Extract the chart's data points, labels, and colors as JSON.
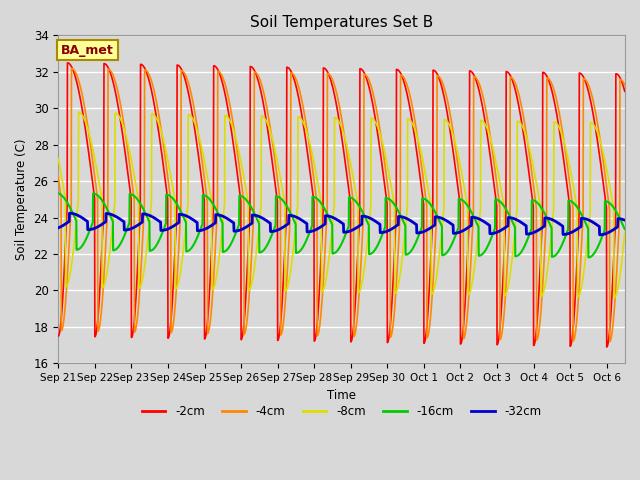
{
  "title": "Soil Temperatures Set B",
  "xlabel": "Time",
  "ylabel": "Soil Temperature (C)",
  "ylim": [
    16,
    34
  ],
  "yticks": [
    16,
    18,
    20,
    22,
    24,
    26,
    28,
    30,
    32,
    34
  ],
  "legend_labels": [
    "-2cm",
    "-4cm",
    "-8cm",
    "-16cm",
    "-32cm"
  ],
  "legend_colors": [
    "#ff0000",
    "#ff8800",
    "#dddd00",
    "#00cc00",
    "#0000cc"
  ],
  "line_widths": [
    1.2,
    1.2,
    1.2,
    1.5,
    2.0
  ],
  "annotation_text": "BA_met",
  "annotation_bg": "#ffff99",
  "annotation_border": "#aa8800",
  "annotation_text_color": "#880000",
  "bg_color": "#d8d8d8",
  "plot_bg_color": "#d8d8d8",
  "grid_color": "#ffffff",
  "n_days": 15.5,
  "mean_temps": [
    25.0,
    25.0,
    25.0,
    23.8,
    23.8
  ],
  "amp_temps": [
    7.5,
    7.2,
    4.8,
    1.55,
    0.45
  ],
  "phase_shifts_days": [
    0.0,
    0.08,
    0.2,
    0.5,
    0.8
  ],
  "trend_slopes": [
    -0.04,
    -0.04,
    -0.04,
    -0.03,
    -0.02
  ],
  "asymmetry": [
    0.25,
    0.28,
    0.35,
    0.45,
    0.5
  ],
  "x_tick_labels": [
    "Sep 21",
    "Sep 22",
    "Sep 23",
    "Sep 24",
    "Sep 25",
    "Sep 26",
    "Sep 27",
    "Sep 28",
    "Sep 29",
    "Sep 30",
    "Oct 1",
    "Oct 2",
    "Oct 3",
    "Oct 4",
    "Oct 5",
    "Oct 6"
  ],
  "x_tick_positions": [
    0,
    1,
    2,
    3,
    4,
    5,
    6,
    7,
    8,
    9,
    10,
    11,
    12,
    13,
    14,
    15
  ]
}
